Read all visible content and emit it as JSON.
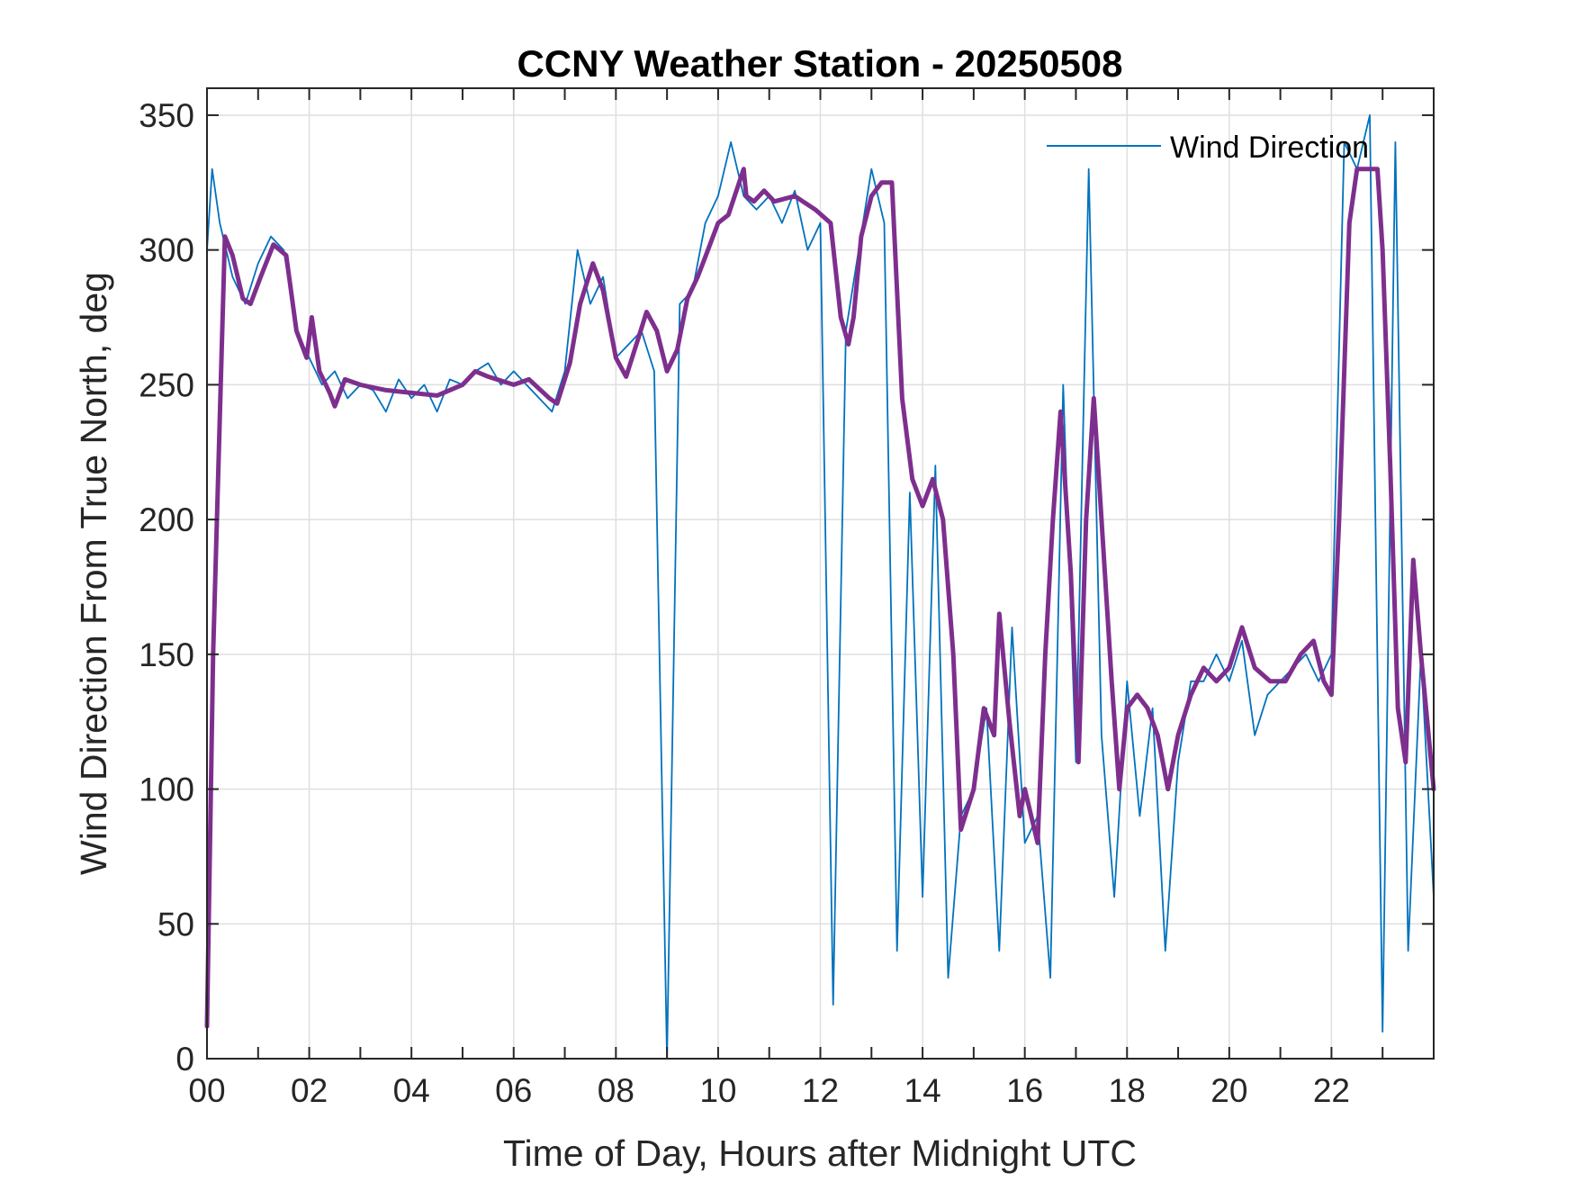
{
  "chart_data": {
    "type": "line",
    "title": "CCNY Weather Station - 20250508",
    "xlabel": "Time of Day, Hours after Midnight UTC",
    "ylabel": "Wind Direction From True North, deg",
    "xlim": [
      0,
      24
    ],
    "ylim": [
      0,
      360
    ],
    "xticks": [
      0,
      2,
      4,
      6,
      8,
      10,
      12,
      14,
      16,
      18,
      20,
      22
    ],
    "xtick_labels": [
      "00",
      "02",
      "04",
      "06",
      "08",
      "10",
      "12",
      "14",
      "16",
      "18",
      "20",
      "22"
    ],
    "yticks": [
      0,
      50,
      100,
      150,
      200,
      250,
      300,
      350
    ],
    "ytick_labels": [
      "0",
      "50",
      "100",
      "150",
      "200",
      "250",
      "300",
      "350"
    ],
    "grid": true,
    "legend": {
      "position": "top-right",
      "entries": [
        "Wind Direction"
      ]
    },
    "series": [
      {
        "name": "Wind Direction",
        "color": "#0072BD",
        "style": "thin noisy raw series with excursions",
        "x": [
          0.0,
          0.1,
          0.25,
          0.5,
          0.75,
          1.0,
          1.25,
          1.5,
          1.75,
          2.0,
          2.25,
          2.5,
          2.75,
          3.0,
          3.25,
          3.5,
          3.75,
          4.0,
          4.25,
          4.5,
          4.75,
          5.0,
          5.25,
          5.5,
          5.75,
          6.0,
          6.25,
          6.5,
          6.75,
          7.0,
          7.25,
          7.5,
          7.75,
          8.0,
          8.25,
          8.5,
          8.75,
          9.0,
          9.25,
          9.5,
          9.75,
          10.0,
          10.25,
          10.5,
          10.75,
          11.0,
          11.25,
          11.5,
          11.75,
          12.0,
          12.25,
          12.5,
          12.75,
          13.0,
          13.25,
          13.5,
          13.75,
          14.0,
          14.25,
          14.5,
          14.75,
          15.0,
          15.25,
          15.5,
          15.75,
          16.0,
          16.25,
          16.5,
          16.75,
          17.0,
          17.25,
          17.5,
          17.75,
          18.0,
          18.25,
          18.5,
          18.75,
          19.0,
          19.25,
          19.5,
          19.75,
          20.0,
          20.25,
          20.5,
          20.75,
          21.0,
          21.25,
          21.5,
          21.75,
          22.0,
          22.25,
          22.5,
          22.75,
          23.0,
          23.25,
          23.5,
          23.75,
          24.0
        ],
        "y": [
          300,
          330,
          310,
          290,
          280,
          295,
          305,
          300,
          270,
          260,
          250,
          255,
          245,
          250,
          248,
          240,
          252,
          245,
          250,
          240,
          252,
          250,
          255,
          258,
          250,
          255,
          250,
          245,
          240,
          255,
          300,
          280,
          290,
          260,
          265,
          270,
          255,
          0,
          280,
          285,
          310,
          320,
          340,
          320,
          315,
          320,
          310,
          322,
          300,
          310,
          20,
          270,
          300,
          330,
          310,
          40,
          210,
          60,
          220,
          30,
          90,
          100,
          130,
          40,
          160,
          80,
          90,
          30,
          250,
          110,
          330,
          120,
          60,
          140,
          90,
          130,
          40,
          110,
          140,
          140,
          150,
          140,
          155,
          120,
          135,
          140,
          145,
          150,
          140,
          150,
          340,
          330,
          350,
          10,
          340,
          40,
          150,
          60
        ],
        "values_note": "approximate"
      },
      {
        "name": "",
        "color": "#7E2F8E",
        "style": "thick smoothed running mean",
        "x": [
          0.0,
          0.12,
          0.35,
          0.5,
          0.7,
          0.85,
          1.05,
          1.3,
          1.55,
          1.75,
          1.95,
          2.05,
          2.2,
          2.4,
          2.5,
          2.7,
          3.0,
          3.5,
          4.0,
          4.5,
          5.0,
          5.25,
          5.5,
          6.0,
          6.3,
          6.7,
          6.85,
          7.1,
          7.3,
          7.55,
          7.75,
          8.0,
          8.2,
          8.4,
          8.6,
          8.8,
          9.0,
          9.2,
          9.4,
          9.6,
          9.8,
          10.0,
          10.2,
          10.5,
          10.55,
          10.7,
          10.9,
          11.1,
          11.5,
          11.9,
          12.2,
          12.4,
          12.55,
          12.65,
          12.8,
          13.0,
          13.2,
          13.4,
          13.6,
          13.8,
          14.0,
          14.2,
          14.4,
          14.6,
          14.75,
          15.0,
          15.2,
          15.4,
          15.5,
          15.7,
          15.9,
          16.0,
          16.25,
          16.4,
          16.55,
          16.7,
          16.9,
          17.05,
          17.2,
          17.35,
          17.5,
          17.7,
          17.85,
          18.0,
          18.2,
          18.4,
          18.6,
          18.8,
          19.0,
          19.25,
          19.5,
          19.75,
          20.0,
          20.25,
          20.5,
          20.8,
          21.1,
          21.4,
          21.65,
          21.85,
          22.0,
          22.15,
          22.35,
          22.5,
          22.65,
          22.9,
          23.0,
          23.15,
          23.3,
          23.45,
          23.6,
          23.75,
          23.9,
          24.0
        ],
        "y": [
          12,
          150,
          305,
          298,
          282,
          280,
          290,
          302,
          298,
          270,
          260,
          275,
          255,
          247,
          242,
          252,
          250,
          248,
          247,
          246,
          250,
          255,
          253,
          250,
          252,
          245,
          243,
          258,
          280,
          295,
          285,
          260,
          253,
          265,
          277,
          270,
          255,
          263,
          282,
          290,
          300,
          310,
          313,
          330,
          320,
          318,
          322,
          318,
          320,
          315,
          310,
          275,
          265,
          275,
          305,
          320,
          325,
          325,
          245,
          215,
          205,
          215,
          200,
          150,
          85,
          100,
          130,
          120,
          165,
          125,
          90,
          100,
          80,
          150,
          200,
          240,
          180,
          110,
          200,
          245,
          200,
          140,
          100,
          130,
          135,
          130,
          120,
          100,
          120,
          135,
          145,
          140,
          145,
          160,
          145,
          140,
          140,
          150,
          155,
          140,
          135,
          200,
          310,
          330,
          330,
          330,
          300,
          220,
          130,
          110,
          185,
          150,
          120,
          100
        ]
      }
    ]
  }
}
